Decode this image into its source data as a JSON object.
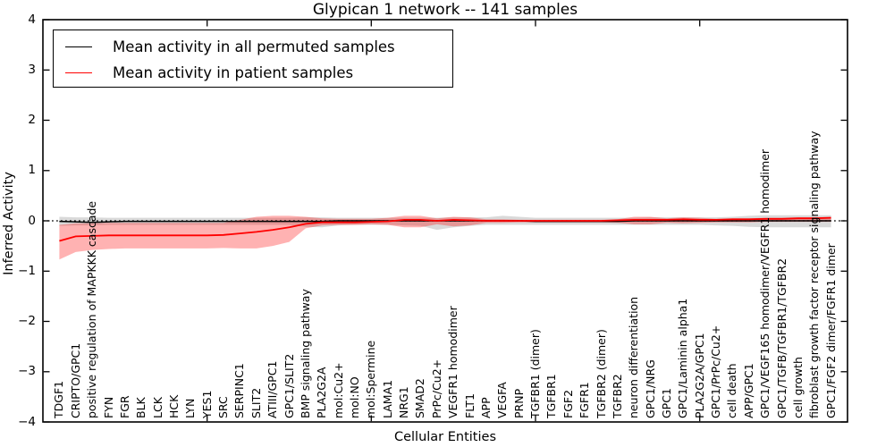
{
  "chart_data": {
    "type": "line",
    "title": "Glypican 1 network -- 141 samples",
    "xlabel": "Cellular Entities",
    "ylabel": "Inferred Activity",
    "ylim": [
      -4,
      4
    ],
    "xlim": [
      0,
      49
    ],
    "yticks": [
      4,
      3,
      2,
      1,
      0,
      -1,
      -2,
      -3,
      -4
    ],
    "xticks": [
      10,
      20,
      30,
      40
    ],
    "grid": false,
    "legend_position": "upper-left",
    "zero_line": {
      "value": 0,
      "style": "dotted",
      "color": "#000000"
    },
    "categories": [
      "TDGF1",
      "CRIPTO/GPC1",
      "positive regulation of MAPKKK cascade",
      "FYN",
      "FGR",
      "BLK",
      "LCK",
      "HCK",
      "LYN",
      "YES1",
      "SRC",
      "SERPINC1",
      "SLIT2",
      "ATIII/GPC1",
      "GPC1/SLIT2",
      "BMP signaling pathway",
      "PLA2G2A",
      "mol:Cu2+",
      "mol:NO",
      "mol:Spermine",
      "LAMA1",
      "NRG1",
      "SMAD2",
      "PrPc/Cu2+",
      "VEGFR1 homodimer",
      "FLT1",
      "APP",
      "VEGFA",
      "PRNP",
      "TGFBR1 (dimer)",
      "TGFBR1",
      "FGF2",
      "FGFR1",
      "TGFBR2 (dimer)",
      "TGFBR2",
      "neuron differentiation",
      "GPC1/NRG",
      "GPC1",
      "GPC1/Laminin alpha1",
      "PLA2G2A/GPC1",
      "GPC1/PrPc/Cu2+",
      "cell death",
      "APP/GPC1",
      "GPC1/VEGF165 homodimer/VEGFR1 homodimer",
      "GPC1/TGFB/TGFBR1/TGFBR2",
      "cell growth",
      "fibroblast growth factor receptor signaling pathway",
      "GPC1/FGF2 dimer/FGFR1 dimer"
    ],
    "series": [
      {
        "name": "Mean activity in all permuted samples",
        "color": "#000000",
        "values": [
          -0.01,
          -0.02,
          -0.03,
          -0.02,
          -0.01,
          -0.01,
          -0.01,
          -0.01,
          -0.01,
          -0.01,
          -0.01,
          -0.01,
          -0.01,
          -0.01,
          -0.01,
          -0.01,
          -0.01,
          0,
          0,
          0,
          0,
          0,
          0,
          0,
          0,
          0,
          0,
          0,
          0,
          -0.01,
          -0.01,
          -0.01,
          -0.01,
          -0.01,
          -0.01,
          0,
          0,
          0,
          0,
          0,
          0,
          0,
          0,
          0,
          0,
          0,
          0,
          0
        ]
      },
      {
        "name": "Mean activity in patient samples",
        "color": "#ff0000",
        "values": [
          -0.4,
          -0.31,
          -0.3,
          -0.29,
          -0.29,
          -0.29,
          -0.29,
          -0.29,
          -0.29,
          -0.29,
          -0.28,
          -0.25,
          -0.22,
          -0.18,
          -0.13,
          -0.06,
          -0.03,
          -0.03,
          -0.03,
          -0.02,
          -0.01,
          0.02,
          0.02,
          0.0,
          0.02,
          0.01,
          0.0,
          0.0,
          0.0,
          0.0,
          0.0,
          0.0,
          0.0,
          0.0,
          0.01,
          0.02,
          0.02,
          0.02,
          0.03,
          0.02,
          0.02,
          0.03,
          0.03,
          0.04,
          0.04,
          0.05,
          0.05,
          0.06
        ]
      }
    ],
    "bands": [
      {
        "name": "permuted samples activity band",
        "color": "#808080",
        "opacity": 0.3,
        "upper": [
          0.08,
          0.07,
          0.07,
          0.06,
          0.06,
          0.06,
          0.06,
          0.06,
          0.06,
          0.06,
          0.06,
          0.06,
          0.06,
          0.06,
          0.06,
          0.07,
          0.07,
          0.06,
          0.06,
          0.06,
          0.06,
          0.06,
          0.06,
          0.06,
          0.07,
          0.07,
          0.07,
          0.1,
          0.08,
          0.06,
          0.06,
          0.06,
          0.06,
          0.06,
          0.06,
          0.06,
          0.07,
          0.07,
          0.07,
          0.07,
          0.07,
          0.08,
          0.1,
          0.11,
          0.11,
          0.11,
          0.11,
          0.11
        ],
        "lower": [
          -0.1,
          -0.09,
          -0.09,
          -0.08,
          -0.08,
          -0.08,
          -0.08,
          -0.08,
          -0.08,
          -0.08,
          -0.08,
          -0.08,
          -0.08,
          -0.08,
          -0.08,
          -0.12,
          -0.13,
          -0.09,
          -0.08,
          -0.08,
          -0.08,
          -0.09,
          -0.1,
          -0.18,
          -0.13,
          -0.1,
          -0.08,
          -0.08,
          -0.08,
          -0.08,
          -0.08,
          -0.08,
          -0.08,
          -0.08,
          -0.08,
          -0.08,
          -0.08,
          -0.08,
          -0.08,
          -0.08,
          -0.09,
          -0.1,
          -0.12,
          -0.13,
          -0.13,
          -0.13,
          -0.13,
          -0.13
        ]
      },
      {
        "name": "patient samples activity band",
        "color": "#ff0000",
        "opacity": 0.3,
        "upper": [
          -0.08,
          -0.05,
          -0.05,
          -0.04,
          -0.04,
          -0.04,
          -0.04,
          -0.04,
          -0.04,
          -0.04,
          -0.04,
          0.02,
          0.08,
          0.1,
          0.1,
          0.08,
          0.05,
          0.04,
          0.04,
          0.04,
          0.06,
          0.1,
          0.1,
          0.05,
          0.08,
          0.07,
          0.03,
          0.03,
          0.02,
          0.02,
          0.02,
          0.02,
          0.02,
          0.02,
          0.03,
          0.08,
          0.08,
          0.05,
          0.07,
          0.06,
          0.04,
          0.05,
          0.05,
          0.06,
          0.06,
          0.07,
          0.07,
          0.08
        ],
        "lower": [
          -0.77,
          -0.62,
          -0.58,
          -0.56,
          -0.55,
          -0.55,
          -0.55,
          -0.55,
          -0.55,
          -0.55,
          -0.54,
          -0.55,
          -0.55,
          -0.5,
          -0.42,
          -0.15,
          -0.09,
          -0.08,
          -0.08,
          -0.07,
          -0.08,
          -0.13,
          -0.13,
          -0.07,
          -0.11,
          -0.09,
          -0.04,
          -0.04,
          -0.03,
          -0.03,
          -0.03,
          -0.03,
          -0.03,
          -0.03,
          -0.04,
          -0.07,
          -0.07,
          -0.04,
          -0.05,
          -0.04,
          -0.03,
          -0.03,
          -0.03,
          -0.02,
          -0.02,
          -0.02,
          -0.02,
          -0.02
        ]
      }
    ]
  }
}
